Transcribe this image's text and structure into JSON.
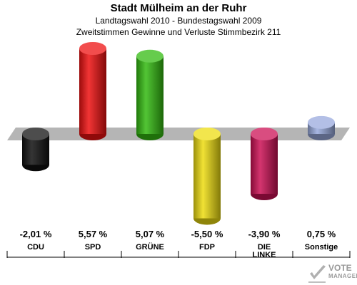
{
  "header": {
    "title": "Stadt Mülheim an der Ruhr",
    "subtitle1": "Landtagswahl 2010 - Bundestagswahl 2009",
    "subtitle2": "Zweitstimmen Gewinne und Verluste Stimmbezirk 211"
  },
  "logo": {
    "line1": "VOTE",
    "line2": "MANAGER"
  },
  "chart_data": {
    "type": "bar",
    "categories": [
      "CDU",
      "SPD",
      "GRÜNE",
      "FDP",
      "DIE LINKE",
      "Sonstige"
    ],
    "values": [
      -2.01,
      5.57,
      5.07,
      -5.5,
      -3.9,
      0.75
    ],
    "value_labels": [
      "-2,01 %",
      "5,57 %",
      "5,07 %",
      "-5,50 %",
      "-3,90 %",
      "0,75 %"
    ],
    "colors": [
      "#111111",
      "#ee1111",
      "#33bb11",
      "#eedd11",
      "#cc1155",
      "#99aadd"
    ],
    "grid": false,
    "legend": "none"
  }
}
